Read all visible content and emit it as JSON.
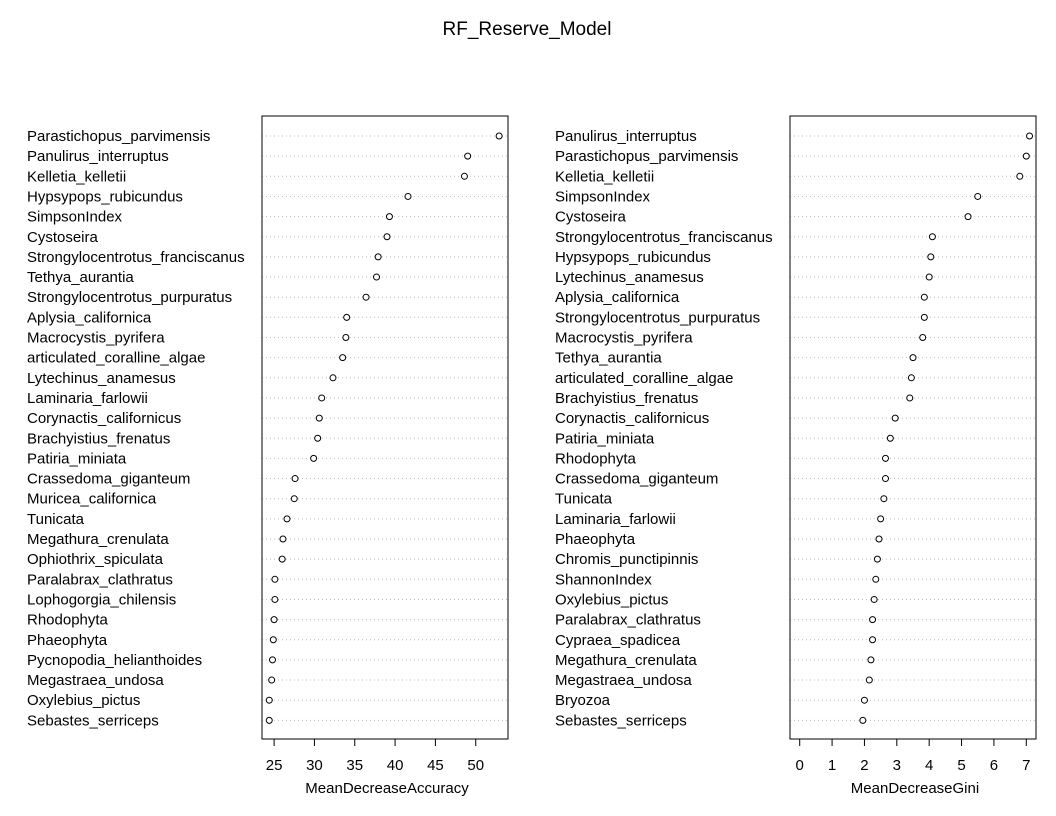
{
  "title": "RF_Reserve_Model",
  "chart_data": [
    {
      "type": "scatter",
      "xlabel": "MeanDecreaseAccuracy",
      "xlim": [
        23.5,
        54
      ],
      "xticks": [
        25,
        30,
        35,
        40,
        45,
        50
      ],
      "grid": true,
      "categories": [
        "Parastichopus_parvimensis",
        "Panulirus_interruptus",
        "Kelletia_kelletii",
        "Hypsypops_rubicundus",
        "SimpsonIndex",
        "Cystoseira",
        "Strongylocentrotus_franciscanus",
        "Tethya_aurantia",
        "Strongylocentrotus_purpuratus",
        "Aplysia_californica",
        "Macrocystis_pyrifera",
        "articulated_coralline_algae",
        "Lytechinus_anamesus",
        "Laminaria_farlowii",
        "Corynactis_californicus",
        "Brachyistius_frenatus",
        "Patiria_miniata",
        "Crassedoma_giganteum",
        "Muricea_californica",
        "Tunicata",
        "Megathura_crenulata",
        "Ophiothrix_spiculata",
        "Paralabrax_clathratus",
        "Lophogorgia_chilensis",
        "Rhodophyta",
        "Phaeophyta",
        "Pycnopodia_helianthoides",
        "Megastraea_undosa",
        "Oxylebius_pictus",
        "Sebastes_serriceps"
      ],
      "values": [
        52.9,
        49.0,
        48.6,
        41.6,
        39.3,
        39.0,
        37.9,
        37.7,
        36.4,
        34.0,
        33.9,
        33.5,
        32.3,
        30.9,
        30.6,
        30.4,
        29.9,
        27.6,
        27.5,
        26.6,
        26.1,
        26.0,
        25.1,
        25.1,
        25.0,
        24.9,
        24.8,
        24.7,
        24.4,
        24.4
      ]
    },
    {
      "type": "scatter",
      "xlabel": "MeanDecreaseGini",
      "xlim": [
        -0.3,
        7.3
      ],
      "xticks": [
        0,
        1,
        2,
        3,
        4,
        5,
        6,
        7
      ],
      "grid": true,
      "categories": [
        "Panulirus_interruptus",
        "Parastichopus_parvimensis",
        "Kelletia_kelletii",
        "SimpsonIndex",
        "Cystoseira",
        "Strongylocentrotus_franciscanus",
        "Hypsypops_rubicundus",
        "Lytechinus_anamesus",
        "Aplysia_californica",
        "Strongylocentrotus_purpuratus",
        "Macrocystis_pyrifera",
        "Tethya_aurantia",
        "articulated_coralline_algae",
        "Brachyistius_frenatus",
        "Corynactis_californicus",
        "Patiria_miniata",
        "Rhodophyta",
        "Crassedoma_giganteum",
        "Tunicata",
        "Laminaria_farlowii",
        "Phaeophyta",
        "Chromis_punctipinnis",
        "ShannonIndex",
        "Oxylebius_pictus",
        "Paralabrax_clathratus",
        "Cypraea_spadicea",
        "Megathura_crenulata",
        "Megastraea_undosa",
        "Bryozoa",
        "Sebastes_serriceps"
      ],
      "values": [
        7.1,
        7.0,
        6.8,
        5.5,
        5.2,
        4.1,
        4.05,
        4.0,
        3.85,
        3.85,
        3.8,
        3.5,
        3.45,
        3.4,
        2.95,
        2.8,
        2.65,
        2.65,
        2.6,
        2.5,
        2.45,
        2.4,
        2.35,
        2.3,
        2.25,
        2.25,
        2.2,
        2.15,
        2.0,
        1.95
      ]
    }
  ]
}
